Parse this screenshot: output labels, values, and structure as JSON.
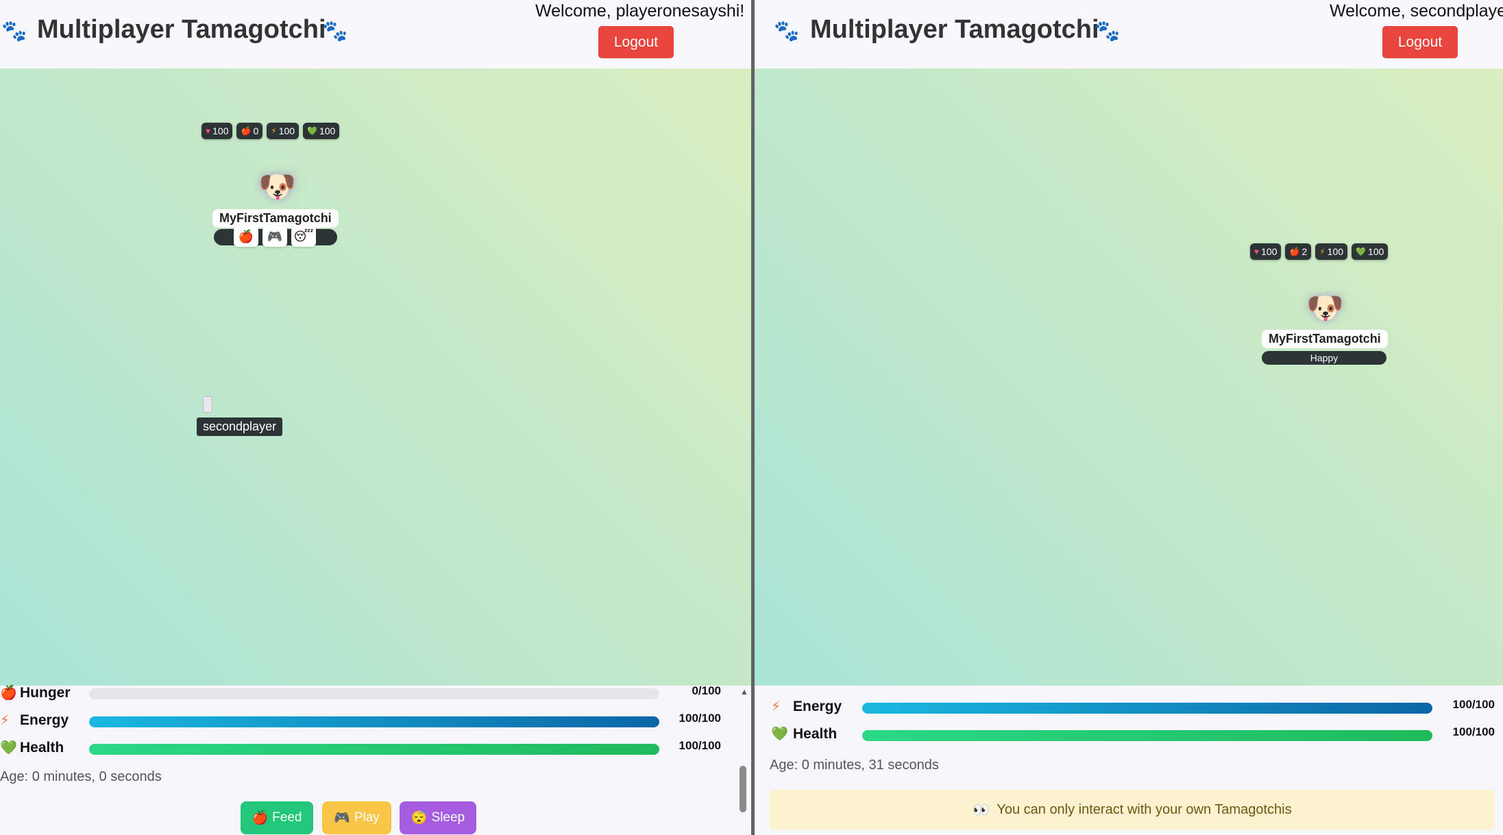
{
  "app": {
    "title": "Multiplayer Tamagotchi",
    "logout_label": "Logout"
  },
  "icons": {
    "paw": "🐾",
    "heart": "♥",
    "hunger": "🍎",
    "energy": "⚡",
    "health": "💚",
    "pet": "🐶",
    "play": "🎮",
    "sleep": "😴",
    "eyes": "👀"
  },
  "left": {
    "welcome": "Welcome, playeronesayshi!",
    "pet": {
      "name": "MyFirstTamagotchi",
      "stats": {
        "happiness": "100",
        "hunger": "0",
        "energy": "100",
        "health": "100"
      }
    },
    "cursor_user": "secondplayer",
    "panel": {
      "hunger": {
        "label": "Hunger",
        "value": "0/100",
        "level": 0
      },
      "energy": {
        "label": "Energy",
        "value": "100/100",
        "level": 100
      },
      "health": {
        "label": "Health",
        "value": "100/100",
        "level": 100
      },
      "age": "Age: 0 minutes, 0 seconds"
    },
    "actions": {
      "feed": "Feed",
      "play": "Play",
      "sleep": "Sleep"
    }
  },
  "right": {
    "welcome": "Welcome, secondplayer",
    "pet": {
      "name": "MyFirstTamagotchi",
      "mood": "Happy",
      "stats": {
        "happiness": "100",
        "hunger": "2",
        "energy": "100",
        "health": "100"
      }
    },
    "panel": {
      "energy": {
        "label": "Energy",
        "value": "100/100",
        "level": 100
      },
      "health": {
        "label": "Health",
        "value": "100/100",
        "level": 100
      },
      "age": "Age: 0 minutes, 31 seconds"
    },
    "notice": "You can only interact with your own Tamagotchis"
  }
}
